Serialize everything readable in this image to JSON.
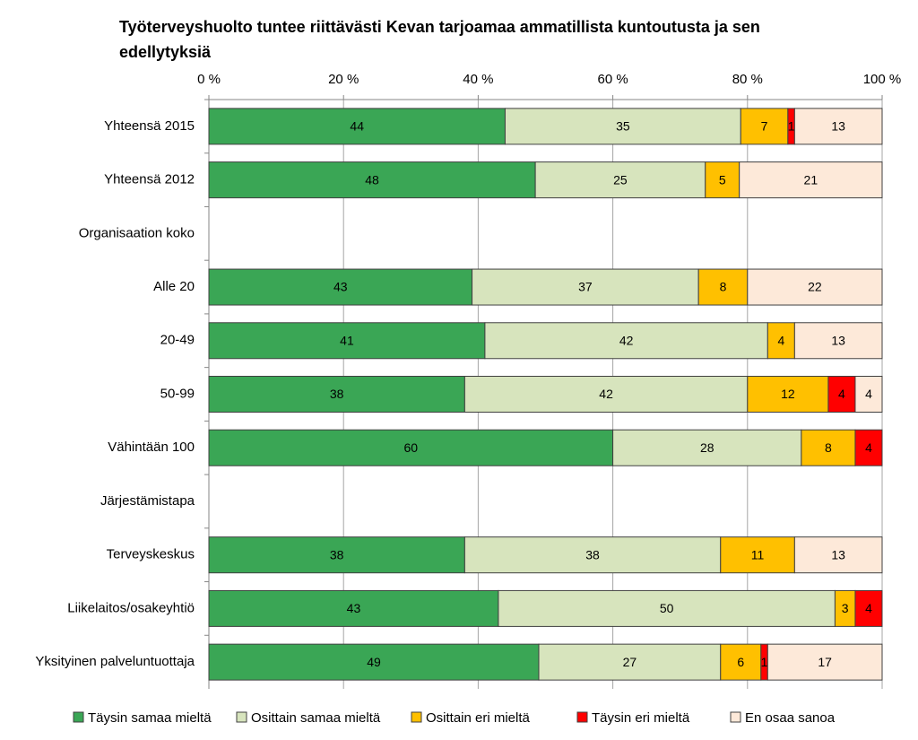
{
  "chart_data": {
    "type": "bar",
    "orientation": "horizontal",
    "stack": "percent",
    "title": "Työterveyshuolto tuntee riittävästi Kevan tarjoamaa ammatillista kuntoutusta ja sen edellytyksiä",
    "categories": [
      "Yhteensä 2015",
      "Yhteensä 2012",
      "Organisaation koko",
      "Alle 20",
      "20-49",
      "50-99",
      "Vähintään 100",
      "Järjestämistapa",
      "Terveyskeskus",
      "Liikelaitos/osakeyhtiö",
      "Yksityinen palveluntuottaja"
    ],
    "series": [
      {
        "name": "Täysin samaa mieltä",
        "color": "#3aa655",
        "values": [
          44,
          48,
          null,
          43,
          41,
          38,
          60,
          null,
          38,
          43,
          49
        ]
      },
      {
        "name": "Osittain samaa mieltä",
        "color": "#d7e4bd",
        "values": [
          35,
          25,
          null,
          37,
          42,
          42,
          28,
          null,
          38,
          50,
          27
        ]
      },
      {
        "name": "Osittain eri mieltä",
        "color": "#ffc000",
        "values": [
          7,
          5,
          null,
          8,
          4,
          12,
          8,
          null,
          11,
          3,
          6
        ]
      },
      {
        "name": "Täysin eri mieltä",
        "color": "#ff0000",
        "values": [
          1,
          null,
          null,
          null,
          null,
          4,
          4,
          null,
          null,
          4,
          1
        ]
      },
      {
        "name": "En osaa sanoa",
        "color": "#fde9d9",
        "values": [
          13,
          21,
          null,
          22,
          13,
          4,
          null,
          null,
          13,
          null,
          17
        ]
      }
    ],
    "xlim": [
      0,
      100
    ],
    "xticks": [
      {
        "value": 0,
        "label": "0 %"
      },
      {
        "value": 20,
        "label": "20 %"
      },
      {
        "value": 40,
        "label": "40 %"
      },
      {
        "value": 60,
        "label": "60 %"
      },
      {
        "value": 80,
        "label": "80 %"
      },
      {
        "value": 100,
        "label": "100 %"
      }
    ],
    "grid": true,
    "legend": "bottom"
  }
}
